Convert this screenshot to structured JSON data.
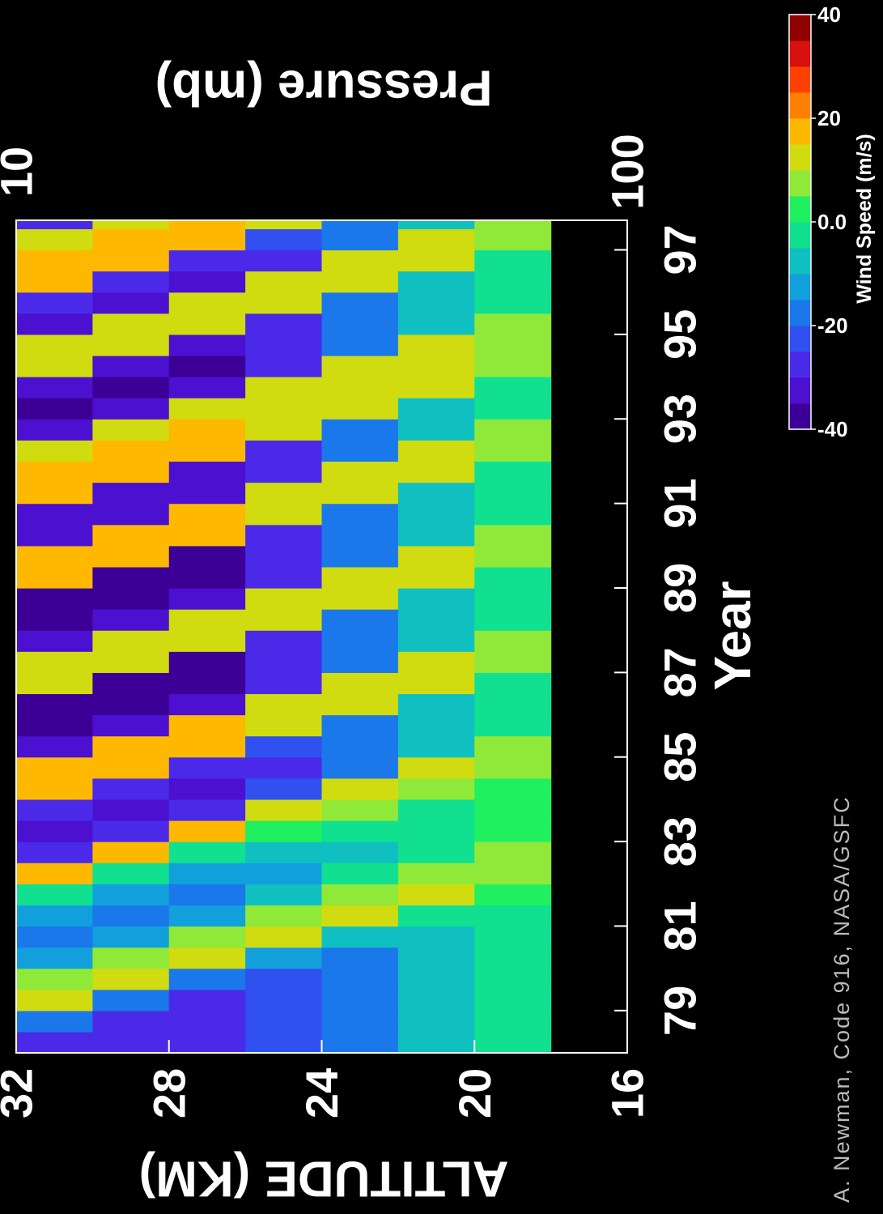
{
  "chart_data": {
    "type": "heatmap",
    "xlabel": "Year",
    "ylabel": "ALTITUDE (KM)",
    "y2label": "Pressure (mb)",
    "credit": "A. Newman, Code 916, NASA/GSFC",
    "xlim": [
      78,
      97.7
    ],
    "xticks": [
      79,
      81,
      83,
      85,
      87,
      89,
      91,
      93,
      95,
      97
    ],
    "ylim": [
      16,
      32
    ],
    "yticks": [
      16,
      20,
      24,
      28,
      32
    ],
    "y2lim": [
      100,
      10
    ],
    "y2ticks": [
      10,
      100
    ],
    "y2log": true,
    "x": [
      78,
      78.5,
      79,
      79.5,
      80,
      80.5,
      81,
      81.5,
      82,
      82.5,
      83,
      83.5,
      84,
      84.5,
      85,
      85.5,
      86,
      86.5,
      87,
      87.5,
      88,
      88.5,
      89,
      89.5,
      90,
      90.5,
      91,
      91.5,
      92,
      92.5,
      93,
      93.5,
      94,
      94.5,
      95,
      95.5,
      96,
      96.5,
      97,
      97.5
    ],
    "altitudes": [
      31,
      29,
      27,
      25,
      23,
      21,
      19
    ],
    "z": [
      [
        -30,
        -20,
        10,
        5,
        -15,
        -20,
        -15,
        -5,
        15,
        -30,
        -35,
        -30,
        15,
        15,
        -35,
        -40,
        -40,
        10,
        10,
        -35,
        -40,
        -40,
        15,
        15,
        -35,
        -35,
        15,
        15,
        10,
        -35,
        -40,
        -35,
        10,
        10,
        -35,
        -30,
        15,
        15,
        10,
        -30
      ],
      [
        -30,
        -30,
        -20,
        10,
        5,
        -15,
        -20,
        -15,
        -5,
        15,
        -30,
        -35,
        -30,
        15,
        15,
        -35,
        -40,
        -40,
        10,
        10,
        -35,
        -40,
        -40,
        15,
        15,
        -35,
        -35,
        15,
        15,
        10,
        -35,
        -40,
        -35,
        10,
        10,
        -35,
        -30,
        15,
        15,
        10
      ],
      [
        -30,
        -30,
        -30,
        -20,
        10,
        5,
        -15,
        -20,
        -15,
        -5,
        15,
        -30,
        -35,
        -30,
        15,
        15,
        -35,
        -40,
        -40,
        10,
        10,
        -35,
        -40,
        -40,
        15,
        15,
        -35,
        -35,
        15,
        15,
        10,
        -35,
        -40,
        -35,
        10,
        10,
        -35,
        -30,
        15,
        15
      ],
      [
        -25,
        -25,
        -25,
        -25,
        -15,
        10,
        5,
        -10,
        -15,
        -10,
        0,
        10,
        -25,
        -30,
        -25,
        10,
        10,
        -30,
        -30,
        -30,
        10,
        10,
        -30,
        -30,
        -30,
        10,
        10,
        -30,
        -30,
        10,
        10,
        10,
        -30,
        -30,
        -30,
        10,
        10,
        -30,
        -25,
        10
      ],
      [
        -20,
        -20,
        -20,
        -20,
        -20,
        -10,
        10,
        5,
        -5,
        -10,
        -5,
        5,
        10,
        -20,
        -20,
        -20,
        10,
        10,
        -20,
        -20,
        -20,
        10,
        10,
        -20,
        -20,
        -20,
        10,
        10,
        -20,
        -20,
        10,
        10,
        10,
        -20,
        -20,
        -20,
        10,
        10,
        -20,
        -20
      ],
      [
        -10,
        -10,
        -10,
        -10,
        -10,
        -10,
        -5,
        10,
        5,
        -5,
        -5,
        -5,
        5,
        10,
        -10,
        -10,
        -10,
        10,
        10,
        -10,
        -10,
        -10,
        10,
        10,
        -10,
        -10,
        -10,
        10,
        10,
        -10,
        -10,
        10,
        10,
        10,
        -10,
        -10,
        -10,
        10,
        10,
        -10
      ],
      [
        -5,
        -5,
        -5,
        -5,
        -5,
        -5,
        -5,
        0,
        5,
        5,
        0,
        0,
        0,
        5,
        5,
        -5,
        -5,
        -5,
        5,
        5,
        -5,
        -5,
        -5,
        5,
        5,
        -5,
        -5,
        -5,
        5,
        5,
        -5,
        -5,
        5,
        5,
        5,
        -5,
        -5,
        -5,
        5,
        5
      ]
    ],
    "colorbar": {
      "label": "Wind Speed (m/s)",
      "lim": [
        -40,
        40
      ],
      "ticks": [
        -40,
        -20,
        {
          "value": 0,
          "label": "0.0"
        },
        20,
        40
      ],
      "colors": [
        "#3c0096",
        "#4b10d0",
        "#4a2ae8",
        "#3050f0",
        "#1a78ea",
        "#12a0dc",
        "#10c0c0",
        "#10e090",
        "#20f060",
        "#90e838",
        "#d0dc10",
        "#ffb800",
        "#ff8000",
        "#ff4000",
        "#d81010",
        "#900000"
      ]
    }
  }
}
